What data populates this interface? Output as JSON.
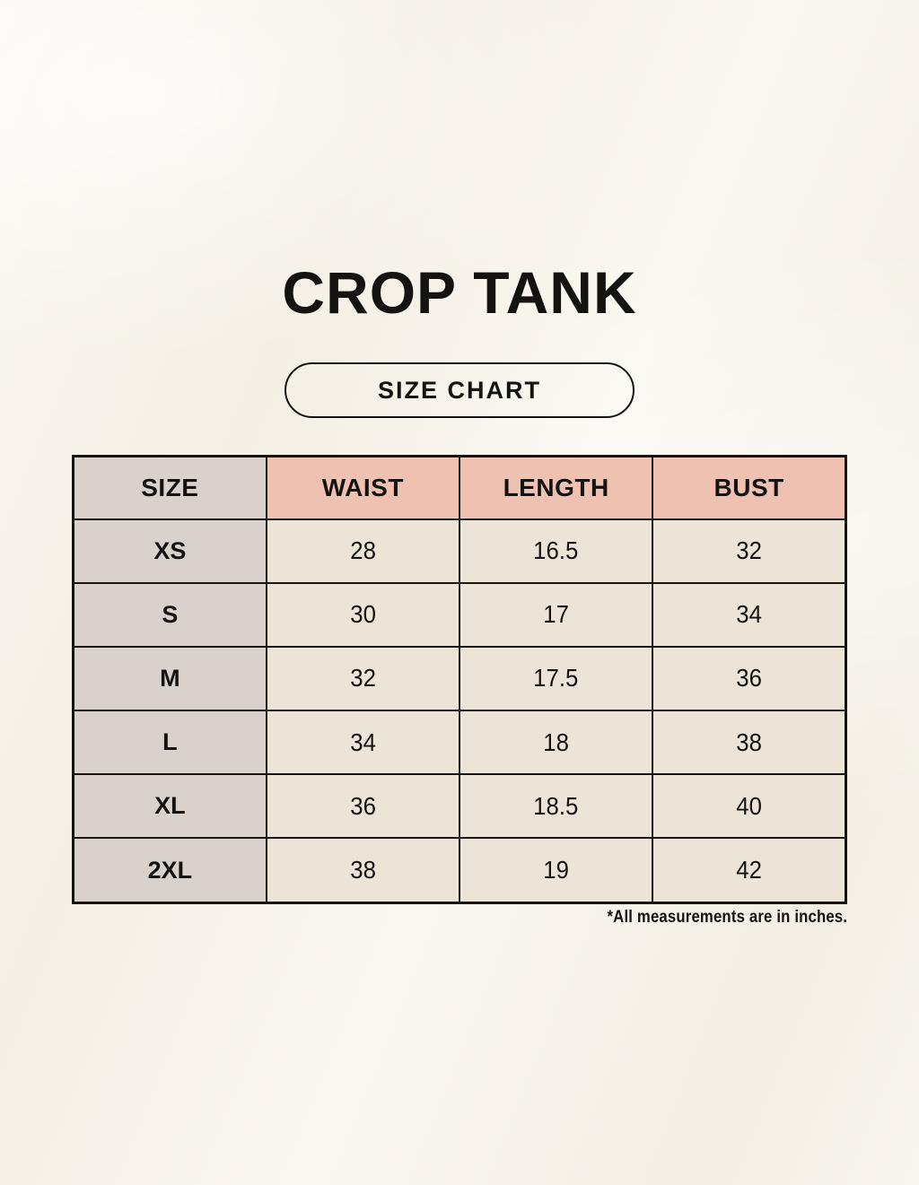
{
  "title": "CROP TANK",
  "badge_label": "SIZE CHART",
  "footnote": "*All measurements are in inches.",
  "chart_data": {
    "type": "table",
    "title": "CROP TANK",
    "subtitle": "SIZE CHART",
    "units": "inches",
    "columns": [
      "SIZE",
      "WAIST",
      "LENGTH",
      "BUST"
    ],
    "rows": [
      [
        "XS",
        "28",
        "16.5",
        "32"
      ],
      [
        "S",
        "30",
        "17",
        "34"
      ],
      [
        "M",
        "32",
        "17.5",
        "36"
      ],
      [
        "L",
        "34",
        "18",
        "38"
      ],
      [
        "XL",
        "36",
        "18.5",
        "40"
      ],
      [
        "2XL",
        "38",
        "19",
        "42"
      ]
    ],
    "footnote": "*All measurements are in inches."
  },
  "colors": {
    "bg": "#f8f4ec",
    "header_pink": "#eec1b1",
    "size_gray": "#d8d1cc",
    "cell_cream": "#ece4d7",
    "line": "#161412",
    "text": "#141312"
  }
}
